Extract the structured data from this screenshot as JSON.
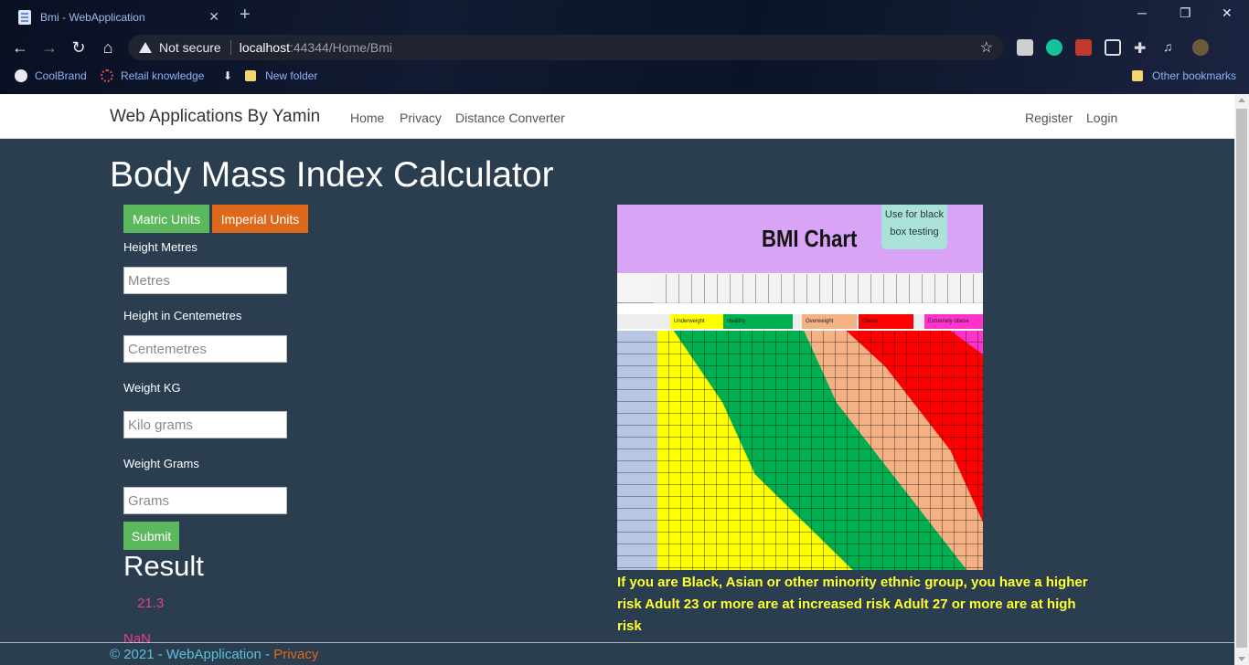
{
  "browser": {
    "tab_title": "Bmi - WebApplication",
    "url_warning": "Not secure",
    "url_host": "localhost",
    "url_path": ":44344/Home/Bmi",
    "bookmarks": [
      "CoolBrand",
      "Retail knowledge",
      "New folder"
    ],
    "other_bookmarks": "Other bookmarks"
  },
  "navbar": {
    "brand": "Web Applications By Yamin",
    "links": [
      "Home",
      "Privacy",
      "Distance Converter"
    ],
    "right_links": [
      "Register",
      "Login"
    ]
  },
  "page": {
    "title": "Body Mass Index Calculator",
    "unit_buttons": {
      "metric": "Matric Units",
      "imperial": "Imperial Units"
    },
    "fields": [
      {
        "label": "Height Metres",
        "placeholder": "Metres"
      },
      {
        "label": "Height in Centemetres",
        "placeholder": "Centemetres"
      },
      {
        "label": "Weight KG",
        "placeholder": "Kilo grams"
      },
      {
        "label": "Weight Grams",
        "placeholder": "Grams"
      }
    ],
    "submit": "Submit",
    "result_heading": "Result",
    "result_value": "21.3",
    "result_extra": "NaN"
  },
  "chart_image": {
    "title": "BMI Chart",
    "note": "Use for black box testing",
    "categories": [
      "Underweight",
      "Healthy",
      "Overweight",
      "Obese",
      "Extremely obese"
    ],
    "colors": {
      "underweight": "#ffff00",
      "healthy": "#00b050",
      "overweight": "#f4b183",
      "obese": "#ff0000",
      "extreme": "#ff33cc"
    }
  },
  "info_text": "If you are Black, Asian or other minority ethnic group, you have a higher risk Adult 23 or more are at increased risk Adult 27 or more are at high risk",
  "footer": {
    "copyright": "© 2021 - WebApplication - ",
    "privacy": "Privacy"
  }
}
